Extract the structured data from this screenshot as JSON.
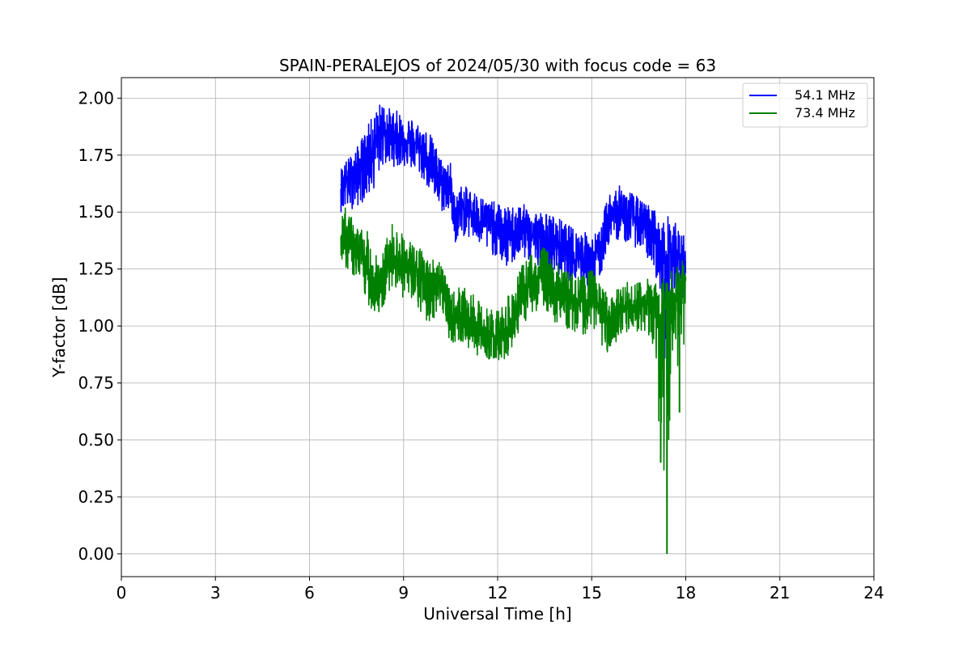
{
  "chart_data": {
    "type": "line",
    "title": "SPAIN-PERALEJOS of 2024/05/30 with focus code = 63",
    "xlabel": "Universal Time [h]",
    "ylabel": "Y-factor [dB]",
    "xlim": [
      0,
      24
    ],
    "ylim": [
      -0.1,
      2.09
    ],
    "xticks": [
      0,
      3,
      6,
      9,
      12,
      15,
      18,
      21,
      24
    ],
    "xtick_labels": [
      "0",
      "3",
      "6",
      "9",
      "12",
      "15",
      "18",
      "21",
      "24"
    ],
    "yticks": [
      0.0,
      0.25,
      0.5,
      0.75,
      1.0,
      1.25,
      1.5,
      1.75,
      2.0
    ],
    "ytick_labels": [
      "0.00",
      "0.25",
      "0.50",
      "0.75",
      "1.00",
      "1.25",
      "1.50",
      "1.75",
      "2.00"
    ],
    "grid": true,
    "legend_position": "upper right",
    "series": [
      {
        "name": "54.1 MHz",
        "color": "#0000ff",
        "x": [
          7.0,
          7.5,
          8.0,
          8.3,
          8.6,
          9.0,
          9.4,
          9.8,
          10.2,
          10.5,
          10.6,
          10.8,
          11.2,
          11.6,
          12.0,
          12.3,
          12.7,
          13.1,
          13.5,
          13.9,
          14.3,
          14.7,
          15.0,
          15.3,
          15.5,
          15.8,
          16.2,
          16.6,
          17.0,
          17.2,
          17.4,
          17.6,
          17.8,
          18.0
        ],
        "y": [
          1.62,
          1.68,
          1.78,
          1.88,
          1.84,
          1.82,
          1.8,
          1.74,
          1.62,
          1.62,
          1.48,
          1.52,
          1.5,
          1.46,
          1.42,
          1.4,
          1.43,
          1.4,
          1.37,
          1.35,
          1.32,
          1.3,
          1.28,
          1.32,
          1.48,
          1.5,
          1.49,
          1.45,
          1.4,
          1.28,
          1.3,
          1.34,
          1.3,
          1.28
        ],
        "y_low": [
          1.5,
          1.52,
          1.58,
          1.7,
          1.7,
          1.7,
          1.68,
          1.6,
          1.5,
          1.5,
          1.35,
          1.4,
          1.38,
          1.33,
          1.3,
          1.25,
          1.3,
          1.28,
          1.25,
          1.22,
          1.2,
          1.18,
          1.16,
          1.22,
          1.35,
          1.38,
          1.36,
          1.33,
          1.25,
          1.12,
          0.7,
          1.18,
          1.1,
          1.15
        ],
        "y_high": [
          1.7,
          1.78,
          1.92,
          1.99,
          1.95,
          1.94,
          1.9,
          1.86,
          1.74,
          1.72,
          1.58,
          1.62,
          1.6,
          1.56,
          1.54,
          1.52,
          1.54,
          1.52,
          1.5,
          1.48,
          1.44,
          1.42,
          1.4,
          1.43,
          1.58,
          1.62,
          1.6,
          1.55,
          1.52,
          1.44,
          1.49,
          1.47,
          1.42,
          1.4
        ]
      },
      {
        "name": "73.4 MHz",
        "color": "#008000",
        "x": [
          7.0,
          7.5,
          8.0,
          8.3,
          8.6,
          9.0,
          9.4,
          9.8,
          10.2,
          10.5,
          10.8,
          11.2,
          11.6,
          12.0,
          12.3,
          12.7,
          13.1,
          13.5,
          13.9,
          14.3,
          14.7,
          15.0,
          15.3,
          15.5,
          15.8,
          16.2,
          16.6,
          17.0,
          17.2,
          17.4,
          17.6,
          17.8,
          18.0
        ],
        "y": [
          1.38,
          1.32,
          1.2,
          1.16,
          1.32,
          1.27,
          1.22,
          1.17,
          1.2,
          1.02,
          1.06,
          1.0,
          0.96,
          0.95,
          0.98,
          1.08,
          1.2,
          1.22,
          1.14,
          1.12,
          1.1,
          1.12,
          1.06,
          1.02,
          1.04,
          1.08,
          1.09,
          1.1,
          1.05,
          1.08,
          1.12,
          1.15,
          1.2
        ],
        "y_low": [
          1.28,
          1.2,
          1.06,
          1.05,
          1.18,
          1.12,
          1.08,
          1.0,
          1.08,
          0.92,
          0.93,
          0.88,
          0.86,
          0.84,
          0.86,
          0.98,
          1.06,
          1.08,
          1.0,
          0.98,
          0.95,
          1.0,
          0.92,
          0.88,
          0.9,
          0.96,
          0.98,
          0.9,
          0.4,
          0.0,
          1.0,
          0.62,
          1.02
        ],
        "y_high": [
          1.55,
          1.45,
          1.4,
          1.3,
          1.46,
          1.4,
          1.36,
          1.3,
          1.3,
          1.14,
          1.18,
          1.14,
          1.08,
          1.08,
          1.12,
          1.25,
          1.33,
          1.35,
          1.28,
          1.24,
          1.22,
          1.25,
          1.18,
          1.15,
          1.16,
          1.2,
          1.2,
          1.22,
          1.2,
          1.24,
          1.25,
          1.28,
          1.3
        ]
      }
    ]
  }
}
